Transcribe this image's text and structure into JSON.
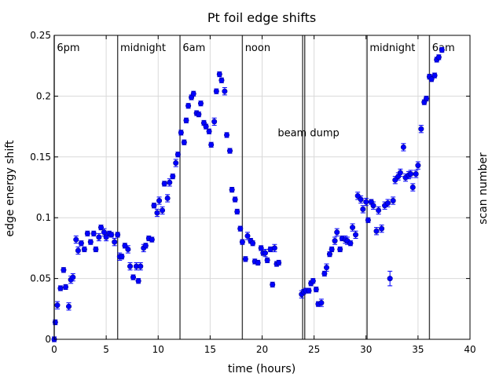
{
  "chart_data": {
    "type": "scatter",
    "title": "Pt foil edge shifts",
    "xlabel": "time (hours)",
    "ylabel": "edge energy shift",
    "y2label": "scan number",
    "xlim": [
      0,
      40
    ],
    "ylim": [
      0,
      0.25
    ],
    "xticks": [
      0,
      5,
      10,
      15,
      20,
      25,
      30,
      35,
      40
    ],
    "yticks": [
      0,
      0.05,
      0.1,
      0.15,
      0.2,
      0.25
    ],
    "xtick_labels": [
      "0",
      "5",
      "10",
      "15",
      "20",
      "25",
      "30",
      "35",
      "40"
    ],
    "ytick_labels": [
      "0",
      "0.05",
      "0.1",
      "0.15",
      "0.2",
      "0.25"
    ],
    "grid": true,
    "marker_color": "#0000ff",
    "vlines": [
      0.0,
      6.1,
      12.1,
      18.1,
      23.9,
      24.1,
      30.1,
      36.1
    ],
    "time_labels": [
      {
        "x": 0.1,
        "text": "6pm"
      },
      {
        "x": 6.2,
        "text": "midnight"
      },
      {
        "x": 12.2,
        "text": "6am"
      },
      {
        "x": 18.2,
        "text": "noon"
      },
      {
        "x": 30.2,
        "text": "midnight"
      },
      {
        "x": 36.2,
        "text": "6am"
      }
    ],
    "annotation": {
      "x": 21.5,
      "y": 0.167,
      "text": "beam  dump"
    },
    "points": [
      [
        0.0,
        0.0,
        0.002
      ],
      [
        0.1,
        0.014,
        0.002
      ],
      [
        0.3,
        0.028,
        0.003
      ],
      [
        0.6,
        0.042,
        0.002
      ],
      [
        0.9,
        0.057,
        0.002
      ],
      [
        1.1,
        0.043,
        0.002
      ],
      [
        1.4,
        0.027,
        0.003
      ],
      [
        1.6,
        0.049,
        0.003
      ],
      [
        1.8,
        0.051,
        0.003
      ],
      [
        2.1,
        0.082,
        0.003
      ],
      [
        2.3,
        0.073,
        0.003
      ],
      [
        2.6,
        0.079,
        0.002
      ],
      [
        2.9,
        0.074,
        0.002
      ],
      [
        3.2,
        0.087,
        0.002
      ],
      [
        3.5,
        0.08,
        0.002
      ],
      [
        3.8,
        0.087,
        0.002
      ],
      [
        4.0,
        0.074,
        0.002
      ],
      [
        4.3,
        0.084,
        0.003
      ],
      [
        4.5,
        0.092,
        0.002
      ],
      [
        4.8,
        0.088,
        0.003
      ],
      [
        5.0,
        0.084,
        0.003
      ],
      [
        5.3,
        0.087,
        0.002
      ],
      [
        5.5,
        0.086,
        0.002
      ],
      [
        5.8,
        0.08,
        0.003
      ],
      [
        6.1,
        0.086,
        0.002
      ],
      [
        6.3,
        0.068,
        0.003
      ],
      [
        6.5,
        0.068,
        0.002
      ],
      [
        6.8,
        0.077,
        0.002
      ],
      [
        7.1,
        0.074,
        0.003
      ],
      [
        7.3,
        0.06,
        0.003
      ],
      [
        7.6,
        0.051,
        0.002
      ],
      [
        7.9,
        0.06,
        0.003
      ],
      [
        8.1,
        0.048,
        0.002
      ],
      [
        8.3,
        0.06,
        0.003
      ],
      [
        8.6,
        0.075,
        0.003
      ],
      [
        8.8,
        0.077,
        0.002
      ],
      [
        9.1,
        0.083,
        0.002
      ],
      [
        9.4,
        0.082,
        0.002
      ],
      [
        9.6,
        0.11,
        0.002
      ],
      [
        9.9,
        0.104,
        0.003
      ],
      [
        10.1,
        0.114,
        0.003
      ],
      [
        10.4,
        0.106,
        0.003
      ],
      [
        10.6,
        0.128,
        0.002
      ],
      [
        10.9,
        0.116,
        0.003
      ],
      [
        11.1,
        0.129,
        0.003
      ],
      [
        11.4,
        0.134,
        0.002
      ],
      [
        11.7,
        0.145,
        0.003
      ],
      [
        11.9,
        0.152,
        0.002
      ],
      [
        12.2,
        0.17,
        0.002
      ],
      [
        12.5,
        0.162,
        0.002
      ],
      [
        12.7,
        0.18,
        0.002
      ],
      [
        12.9,
        0.192,
        0.002
      ],
      [
        13.2,
        0.199,
        0.002
      ],
      [
        13.4,
        0.202,
        0.002
      ],
      [
        13.7,
        0.186,
        0.002
      ],
      [
        13.9,
        0.185,
        0.002
      ],
      [
        14.1,
        0.194,
        0.002
      ],
      [
        14.4,
        0.178,
        0.002
      ],
      [
        14.6,
        0.175,
        0.002
      ],
      [
        14.9,
        0.171,
        0.002
      ],
      [
        15.1,
        0.16,
        0.002
      ],
      [
        15.4,
        0.179,
        0.003
      ],
      [
        15.6,
        0.204,
        0.002
      ],
      [
        15.9,
        0.218,
        0.002
      ],
      [
        16.1,
        0.213,
        0.002
      ],
      [
        16.4,
        0.204,
        0.003
      ],
      [
        16.6,
        0.168,
        0.002
      ],
      [
        16.9,
        0.155,
        0.002
      ],
      [
        17.1,
        0.123,
        0.002
      ],
      [
        17.4,
        0.115,
        0.002
      ],
      [
        17.6,
        0.105,
        0.002
      ],
      [
        17.9,
        0.091,
        0.002
      ],
      [
        18.1,
        0.08,
        0.002
      ],
      [
        18.4,
        0.066,
        0.002
      ],
      [
        18.6,
        0.085,
        0.003
      ],
      [
        18.9,
        0.081,
        0.002
      ],
      [
        19.1,
        0.079,
        0.002
      ],
      [
        19.3,
        0.064,
        0.002
      ],
      [
        19.6,
        0.063,
        0.002
      ],
      [
        19.9,
        0.075,
        0.002
      ],
      [
        20.1,
        0.071,
        0.002
      ],
      [
        20.3,
        0.071,
        0.003
      ],
      [
        20.5,
        0.065,
        0.002
      ],
      [
        20.8,
        0.074,
        0.002
      ],
      [
        21.0,
        0.045,
        0.002
      ],
      [
        21.2,
        0.075,
        0.003
      ],
      [
        21.4,
        0.062,
        0.002
      ],
      [
        21.6,
        0.063,
        0.002
      ],
      [
        23.8,
        0.037,
        0.003
      ],
      [
        24.0,
        0.039,
        0.002
      ],
      [
        24.2,
        0.04,
        0.002
      ],
      [
        24.5,
        0.04,
        0.002
      ],
      [
        24.7,
        0.046,
        0.002
      ],
      [
        24.9,
        0.048,
        0.002
      ],
      [
        25.2,
        0.041,
        0.002
      ],
      [
        25.4,
        0.029,
        0.002
      ],
      [
        25.7,
        0.03,
        0.003
      ],
      [
        26.0,
        0.054,
        0.002
      ],
      [
        26.2,
        0.059,
        0.003
      ],
      [
        26.5,
        0.07,
        0.002
      ],
      [
        26.7,
        0.074,
        0.002
      ],
      [
        27.0,
        0.081,
        0.003
      ],
      [
        27.2,
        0.088,
        0.003
      ],
      [
        27.5,
        0.074,
        0.002
      ],
      [
        27.7,
        0.083,
        0.002
      ],
      [
        28.0,
        0.082,
        0.003
      ],
      [
        28.2,
        0.081,
        0.003
      ],
      [
        28.5,
        0.079,
        0.002
      ],
      [
        28.7,
        0.092,
        0.003
      ],
      [
        29.0,
        0.086,
        0.003
      ],
      [
        29.2,
        0.118,
        0.003
      ],
      [
        29.5,
        0.115,
        0.003
      ],
      [
        29.7,
        0.107,
        0.003
      ],
      [
        30.0,
        0.113,
        0.003
      ],
      [
        30.2,
        0.098,
        0.002
      ],
      [
        30.5,
        0.113,
        0.002
      ],
      [
        30.7,
        0.11,
        0.003
      ],
      [
        31.0,
        0.089,
        0.003
      ],
      [
        31.2,
        0.106,
        0.003
      ],
      [
        31.5,
        0.091,
        0.003
      ],
      [
        31.8,
        0.11,
        0.003
      ],
      [
        32.1,
        0.112,
        0.003
      ],
      [
        32.3,
        0.05,
        0.006
      ],
      [
        32.6,
        0.114,
        0.003
      ],
      [
        32.8,
        0.131,
        0.003
      ],
      [
        33.1,
        0.134,
        0.003
      ],
      [
        33.3,
        0.137,
        0.003
      ],
      [
        33.6,
        0.158,
        0.003
      ],
      [
        33.8,
        0.133,
        0.003
      ],
      [
        34.1,
        0.135,
        0.003
      ],
      [
        34.3,
        0.136,
        0.003
      ],
      [
        34.5,
        0.125,
        0.003
      ],
      [
        34.8,
        0.136,
        0.003
      ],
      [
        35.0,
        0.143,
        0.003
      ],
      [
        35.3,
        0.173,
        0.003
      ],
      [
        35.6,
        0.195,
        0.002
      ],
      [
        35.8,
        0.198,
        0.002
      ],
      [
        36.1,
        0.216,
        0.002
      ],
      [
        36.3,
        0.214,
        0.002
      ],
      [
        36.6,
        0.217,
        0.002
      ],
      [
        36.8,
        0.23,
        0.002
      ],
      [
        37.0,
        0.232,
        0.002
      ],
      [
        37.3,
        0.238,
        0.002
      ]
    ]
  }
}
